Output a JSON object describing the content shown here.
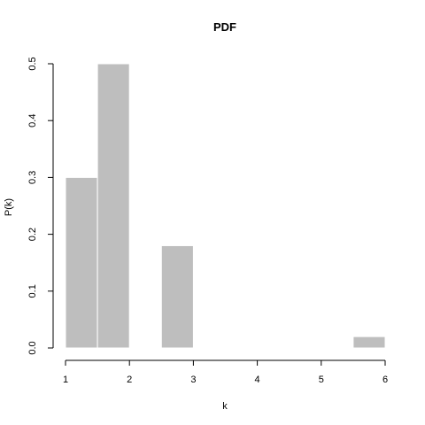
{
  "chart_data": {
    "type": "bar",
    "title": "PDF",
    "xlabel": "k",
    "ylabel": "P(k)",
    "xlim": [
      1,
      6
    ],
    "ylim": [
      0,
      0.5
    ],
    "x_ticks": [
      "1",
      "2",
      "3",
      "4",
      "5",
      "6"
    ],
    "y_ticks": [
      "0.0",
      "0.1",
      "0.2",
      "0.3",
      "0.4",
      "0.5"
    ],
    "grid": false,
    "bars": [
      {
        "x_start": 1.0,
        "x_end": 1.5,
        "value": 0.3
      },
      {
        "x_start": 1.5,
        "x_end": 2.0,
        "value": 0.5
      },
      {
        "x_start": 2.5,
        "x_end": 3.0,
        "value": 0.18
      },
      {
        "x_start": 5.5,
        "x_end": 6.0,
        "value": 0.02
      }
    ],
    "bar_color": "#bebebe",
    "bar_border_color": "#ffffff"
  }
}
